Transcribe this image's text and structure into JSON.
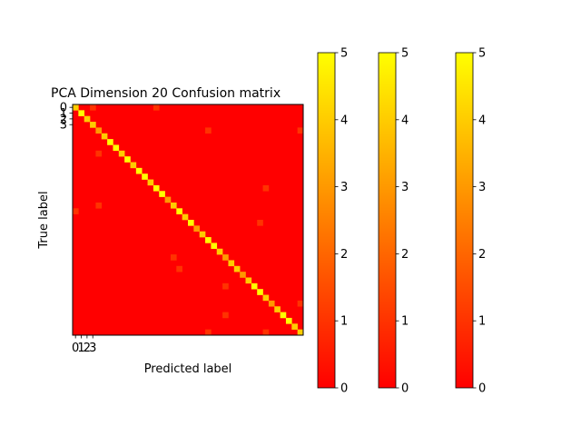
{
  "chart_data": {
    "type": "heatmap",
    "title": "PCA Dimension 20 Confusion matrix",
    "xlabel": "Predicted label",
    "ylabel": "True label",
    "n_classes": 40,
    "tick_labels": [
      "0",
      "1",
      "2",
      "3"
    ],
    "value_range": [
      0,
      5
    ],
    "colormap": "autumn",
    "colormap_colors": [
      "#ff0000",
      "#ffff00"
    ],
    "colorbars": [
      {
        "ticks": [
          "0",
          "1",
          "2",
          "3",
          "4",
          "5"
        ]
      },
      {
        "ticks": [
          "0",
          "1",
          "2",
          "3",
          "4",
          "5"
        ]
      },
      {
        "ticks": [
          "0",
          "1",
          "2",
          "3",
          "4",
          "5"
        ]
      }
    ],
    "diagonal": [
      4,
      5,
      4,
      4,
      3,
      4,
      5,
      5,
      4,
      5,
      4,
      5,
      5,
      4,
      5,
      5,
      3,
      4,
      5,
      4,
      5,
      3,
      4,
      5,
      5,
      4,
      3,
      4,
      4,
      3,
      4,
      5,
      5,
      4,
      3,
      4,
      5,
      5,
      4,
      4
    ],
    "off_diagonal": [
      {
        "row": 0,
        "col": 3,
        "value": 1
      },
      {
        "row": 0,
        "col": 14,
        "value": 1
      },
      {
        "row": 4,
        "col": 23,
        "value": 1
      },
      {
        "row": 4,
        "col": 39,
        "value": 1
      },
      {
        "row": 8,
        "col": 4,
        "value": 1
      },
      {
        "row": 14,
        "col": 33,
        "value": 1
      },
      {
        "row": 17,
        "col": 4,
        "value": 1
      },
      {
        "row": 18,
        "col": 0,
        "value": 1
      },
      {
        "row": 20,
        "col": 32,
        "value": 1
      },
      {
        "row": 26,
        "col": 17,
        "value": 1
      },
      {
        "row": 28,
        "col": 18,
        "value": 1
      },
      {
        "row": 31,
        "col": 26,
        "value": 1
      },
      {
        "row": 34,
        "col": 39,
        "value": 1
      },
      {
        "row": 36,
        "col": 26,
        "value": 1
      },
      {
        "row": 39,
        "col": 23,
        "value": 1
      },
      {
        "row": 39,
        "col": 33,
        "value": 1
      }
    ]
  }
}
